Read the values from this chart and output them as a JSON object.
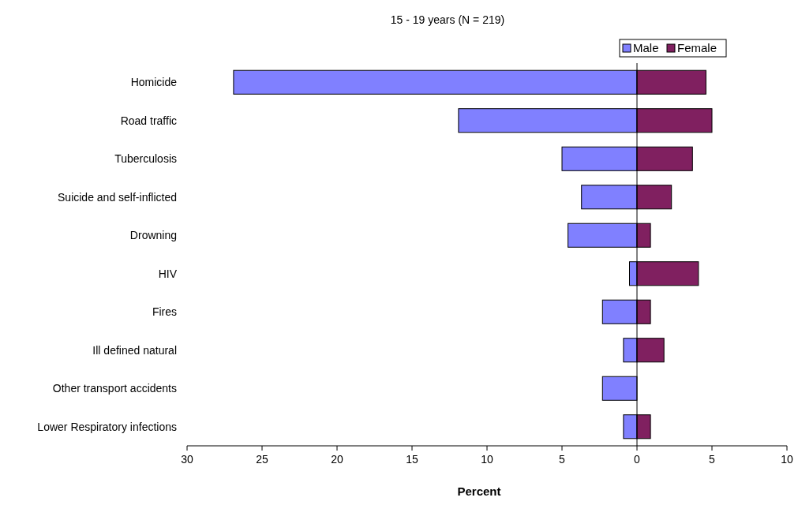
{
  "chart_data": {
    "type": "bar",
    "orientation": "horizontal",
    "stacked": true,
    "title": "15 - 19 years (N = 219)",
    "xlabel": "Percent",
    "categories": [
      "Homicide",
      "Road traffic",
      "Tuberculosis",
      "Suicide and self-inflicted",
      "Drowning",
      "HIV",
      "Fires",
      "Ill defined natural",
      "Other transport accidents",
      "Lower Respiratory infections"
    ],
    "series": [
      {
        "name": "Male",
        "color": "#8080ff",
        "values": [
          -26.9,
          -11.9,
          -5.0,
          -3.7,
          -4.6,
          -0.5,
          -2.3,
          -0.9,
          -2.3,
          -0.9
        ]
      },
      {
        "name": "Female",
        "color": "#802060",
        "values": [
          4.6,
          5.0,
          3.7,
          2.3,
          0.9,
          4.1,
          0.9,
          1.8,
          0,
          0.9
        ]
      }
    ],
    "xlim": [
      -30,
      10
    ],
    "xticks": [
      {
        "value": -30,
        "label": "30"
      },
      {
        "value": -25,
        "label": "25"
      },
      {
        "value": -20,
        "label": "20"
      },
      {
        "value": -15,
        "label": "15"
      },
      {
        "value": -10,
        "label": "10"
      },
      {
        "value": -5,
        "label": "5"
      },
      0,
      5,
      10
    ],
    "legend": "top right"
  }
}
